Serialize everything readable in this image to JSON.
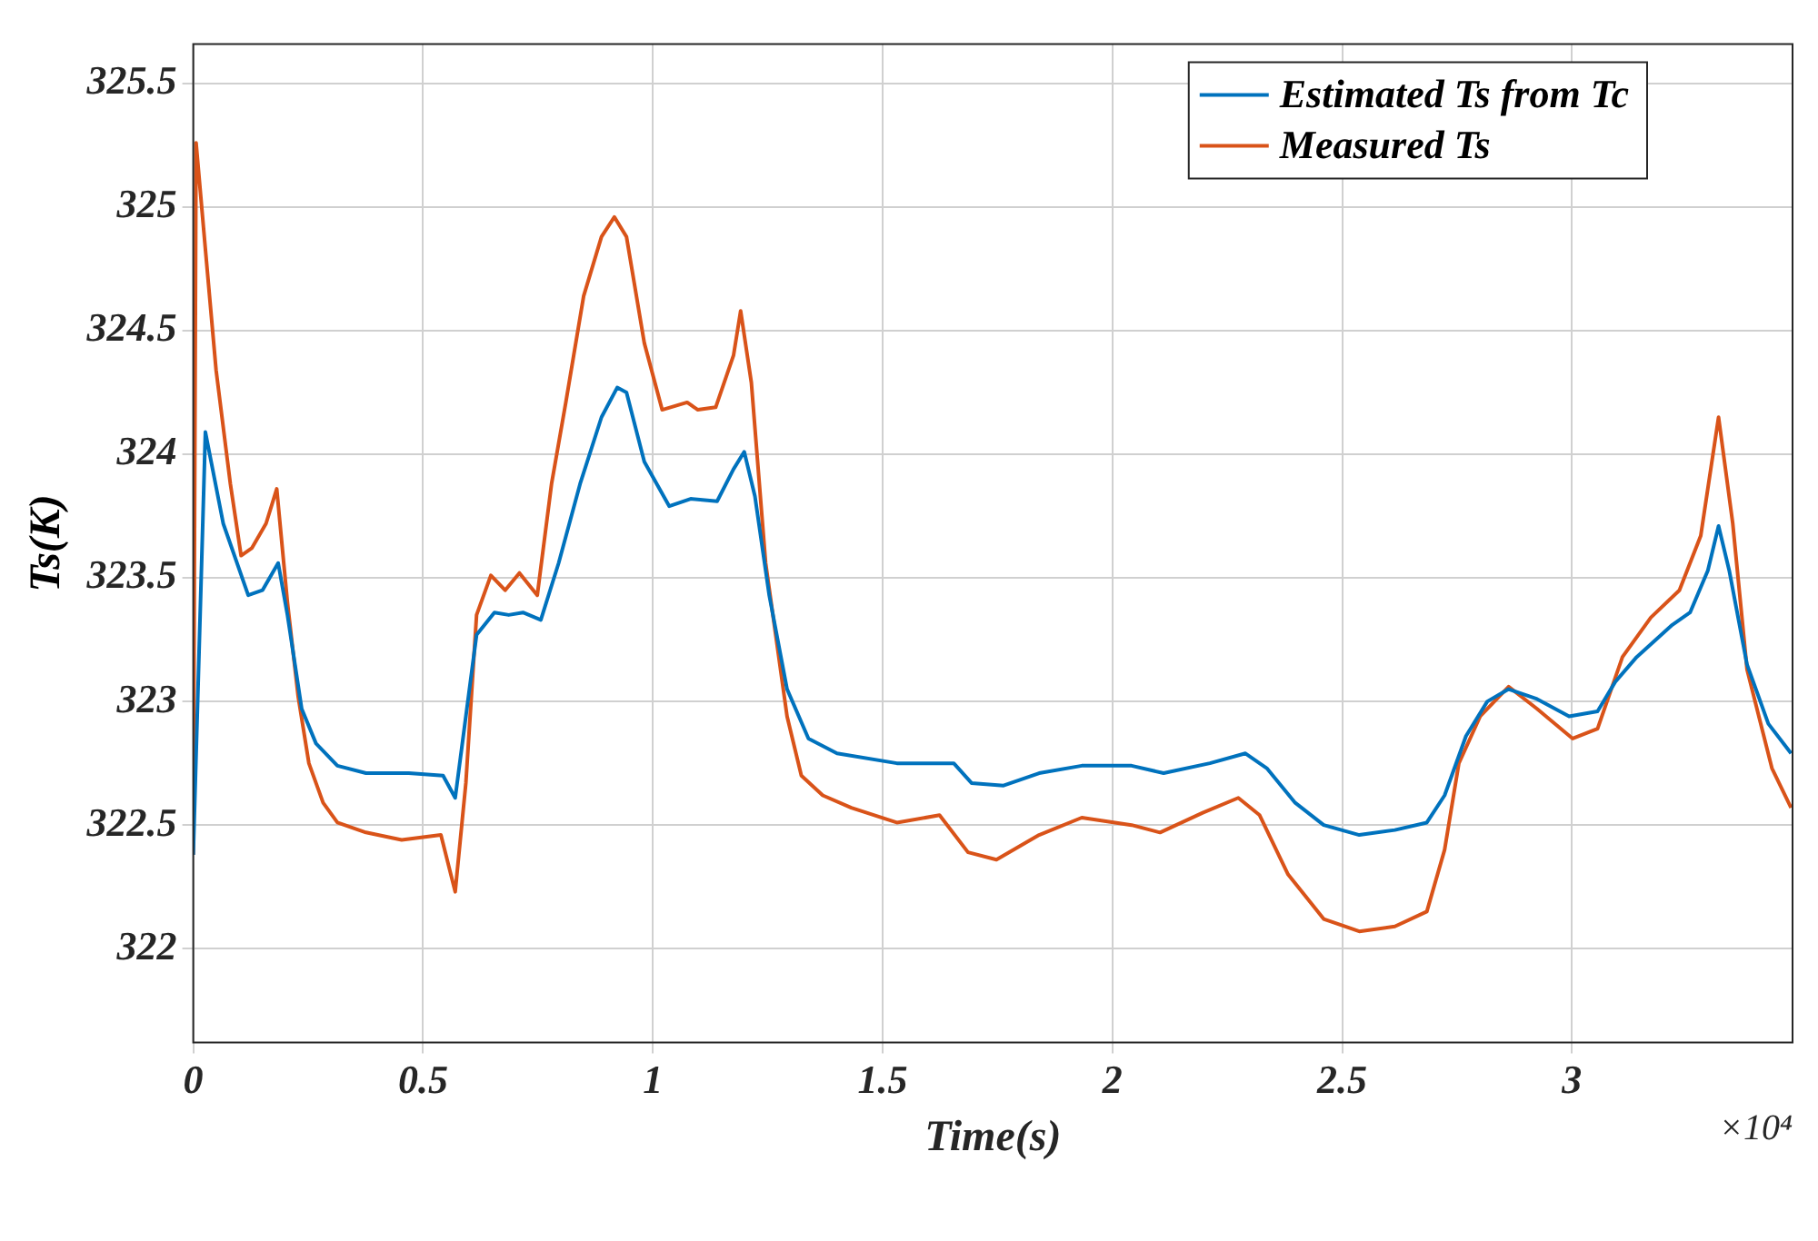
{
  "chart_data": {
    "type": "line",
    "xlabel": "Time(s)",
    "ylabel": "Ts(K)",
    "annotations": [
      "×10⁴"
    ],
    "xlim": [
      0,
      3.48
    ],
    "ylim": [
      321.62,
      325.66
    ],
    "xticks": [
      0,
      0.5,
      1,
      1.5,
      2,
      2.5,
      3
    ],
    "yticks": [
      322,
      322.5,
      323,
      323.5,
      324,
      324.5,
      325,
      325.5
    ],
    "grid": true,
    "legend": "top right",
    "marker": "none",
    "line_style": "solid",
    "series": [
      {
        "name": "Estimated Ts from Tc",
        "color": "#0072bd",
        "x": [
          0,
          0.0264,
          0.0652,
          0.1196,
          0.1506,
          0.1848,
          0.205,
          0.236,
          0.2671,
          0.3137,
          0.3758,
          0.469,
          0.5436,
          0.57,
          0.5932,
          0.6165,
          0.6553,
          0.6864,
          0.7175,
          0.7563,
          0.7951,
          0.8417,
          0.8883,
          0.9225,
          0.9427,
          0.9815,
          1.0358,
          1.0824,
          1.1399,
          1.1756,
          1.1989,
          1.2222,
          1.2533,
          1.2921,
          1.3387,
          1.4008,
          1.531,
          1.6548,
          1.6935,
          1.7632,
          1.8406,
          1.9334,
          2.0418,
          2.1115,
          2.2121,
          2.2895,
          2.3359,
          2.3978,
          2.4598,
          2.5372,
          2.6146,
          2.6842,
          2.7229,
          2.7694,
          2.8158,
          2.8622,
          2.9241,
          2.9938,
          3.0557,
          3.0944,
          3.1409,
          3.2183,
          3.257,
          3.2957,
          3.319,
          3.3422,
          3.3809,
          3.4273,
          3.4768
        ],
        "values": [
          322.38,
          324.09,
          323.72,
          323.43,
          323.45,
          323.56,
          323.35,
          322.97,
          322.83,
          322.74,
          322.71,
          322.71,
          322.7,
          322.61,
          322.94,
          323.27,
          323.36,
          323.35,
          323.36,
          323.33,
          323.56,
          323.88,
          324.15,
          324.27,
          324.25,
          323.97,
          323.79,
          323.82,
          323.81,
          323.94,
          324.01,
          323.83,
          323.43,
          323.05,
          322.85,
          322.79,
          322.75,
          322.75,
          322.67,
          322.66,
          322.71,
          322.74,
          322.74,
          322.71,
          322.75,
          322.79,
          322.73,
          322.59,
          322.5,
          322.46,
          322.48,
          322.51,
          322.62,
          322.86,
          323,
          323.05,
          323.01,
          322.94,
          322.96,
          323.08,
          323.18,
          323.31,
          323.36,
          323.53,
          323.71,
          323.53,
          323.15,
          322.91,
          322.79
        ]
      },
      {
        "name": "Measured Ts",
        "color": "#d95319",
        "x": [
          0,
          0.0062,
          0.0264,
          0.0497,
          0.0808,
          0.1041,
          0.1273,
          0.1584,
          0.1817,
          0.205,
          0.2283,
          0.2516,
          0.2826,
          0.3137,
          0.3758,
          0.4535,
          0.5389,
          0.57,
          0.5932,
          0.6165,
          0.6476,
          0.6786,
          0.7097,
          0.7486,
          0.7796,
          0.8107,
          0.8495,
          0.8883,
          0.9163,
          0.9427,
          0.9815,
          1.0203,
          1.0747,
          1.098,
          1.1368,
          1.1756,
          1.1911,
          1.2144,
          1.2455,
          1.2921,
          1.3232,
          1.3698,
          1.4319,
          1.531,
          1.6239,
          1.6858,
          1.7477,
          1.8406,
          1.9334,
          2.0418,
          2.1037,
          2.1966,
          2.274,
          2.3204,
          2.3823,
          2.4598,
          2.5372,
          2.6146,
          2.6842,
          2.7229,
          2.7539,
          2.8003,
          2.8622,
          2.9241,
          3.0015,
          3.0557,
          3.1099,
          3.1718,
          3.2338,
          3.2802,
          3.319,
          3.3499,
          3.3809,
          3.4351,
          3.4768
        ],
        "values": [
          322.38,
          325.26,
          324.83,
          324.34,
          323.88,
          323.59,
          323.62,
          323.72,
          323.86,
          323.4,
          323.02,
          322.75,
          322.59,
          322.51,
          322.47,
          322.44,
          322.46,
          322.23,
          322.67,
          323.35,
          323.51,
          323.45,
          323.52,
          323.43,
          323.88,
          324.21,
          324.64,
          324.88,
          324.96,
          324.88,
          324.45,
          324.18,
          324.21,
          324.18,
          324.19,
          324.4,
          324.58,
          324.29,
          323.56,
          322.94,
          322.7,
          322.62,
          322.57,
          322.51,
          322.54,
          322.39,
          322.36,
          322.46,
          322.53,
          322.5,
          322.47,
          322.55,
          322.61,
          322.54,
          322.3,
          322.12,
          322.07,
          322.09,
          322.15,
          322.4,
          322.75,
          322.94,
          323.06,
          322.97,
          322.85,
          322.89,
          323.18,
          323.34,
          323.45,
          323.67,
          324.15,
          323.72,
          323.13,
          322.73,
          322.57
        ]
      }
    ]
  }
}
